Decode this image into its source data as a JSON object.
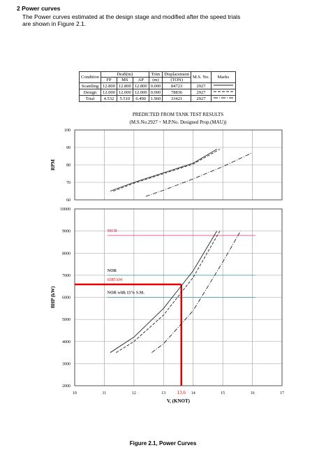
{
  "section": {
    "heading": "2 Power curves",
    "text_lines": [
      "The Power curves estimated at the design stage and modified after the speed trials",
      "are shown in Figure 2.1."
    ]
  },
  "table": {
    "header": [
      "Condition",
      "Draft(m)",
      "Trim",
      "Displacement",
      "M.S. No.",
      "Marks"
    ],
    "subheader": [
      "FP",
      "MS",
      "AP",
      "(m)",
      "(TON)"
    ],
    "rows": [
      [
        "Scantling",
        "12.800",
        "12.800",
        "12.800",
        "0.000",
        "84723",
        "2927"
      ],
      [
        "Design",
        "12.000",
        "12.000",
        "12.000",
        "0.000",
        "78836",
        "2927"
      ],
      [
        "Trial",
        "4.532",
        "5.510",
        "6.490",
        "1.960",
        "33421",
        "2927"
      ]
    ]
  },
  "figure": {
    "title_lines": [
      "PREDICTED FROM TANK TEST RESULTS",
      "(M.S.No.2927 ~ M.P.No. Designed Prop.(MAU))"
    ],
    "caption": "Figure 2.1, Power Curves"
  },
  "chart_data": [
    {
      "type": "line",
      "ylabel": "RPM",
      "xlim": [
        10,
        17
      ],
      "ylim": [
        60,
        100
      ],
      "yticks": [
        60,
        70,
        80,
        90,
        100
      ],
      "grid": true,
      "series": [
        {
          "color": "#222222",
          "dash": "solid",
          "x": [
            11.2,
            12,
            13,
            14,
            14.8
          ],
          "values": [
            65,
            70,
            75.5,
            81,
            89
          ]
        },
        {
          "color": "#222222",
          "dash": "dashed",
          "x": [
            11.3,
            12,
            13,
            14,
            14.9
          ],
          "values": [
            65,
            69.5,
            75,
            80.5,
            89
          ]
        },
        {
          "color": "#222222",
          "dash": "dashdot",
          "x": [
            12.4,
            13,
            14,
            15,
            16
          ],
          "values": [
            62,
            65.5,
            72,
            79,
            87
          ]
        }
      ]
    },
    {
      "type": "line",
      "ylabel": "BHP (kW)",
      "xlabel": "V, (KNOT)",
      "xlim": [
        10,
        17
      ],
      "xticks": [
        10,
        11,
        12,
        13,
        14,
        15,
        16,
        17
      ],
      "ylim": [
        2000,
        10000
      ],
      "yticks": [
        2000,
        3000,
        4000,
        5000,
        6000,
        7000,
        8000,
        9000,
        10000
      ],
      "grid": true,
      "series": [
        {
          "color": "#222222",
          "dash": "solid",
          "x": [
            11.2,
            12,
            13,
            14,
            14.8
          ],
          "values": [
            3500,
            4200,
            5500,
            7200,
            9000
          ]
        },
        {
          "color": "#222222",
          "dash": "dashed",
          "x": [
            11.4,
            12,
            13,
            14,
            14.9
          ],
          "values": [
            3500,
            4000,
            5200,
            6900,
            9000
          ]
        },
        {
          "color": "#222222",
          "dash": "dashdot",
          "x": [
            12.6,
            13,
            14,
            15,
            15.6
          ],
          "values": [
            3500,
            3900,
            5400,
            7600,
            9000
          ]
        }
      ],
      "annotations": [
        {
          "label": "MCR",
          "value": 8800,
          "color": "#e0507a"
        },
        {
          "label": "NOR",
          "value": 7000,
          "color": "#3a9a9a"
        },
        {
          "label": "NOR with 15% S.M.",
          "value": 6000,
          "color": "#3a9a9a"
        },
        {
          "label": "6585 kW",
          "value": 6585,
          "x": 13.6,
          "color": "#e00000"
        }
      ]
    }
  ]
}
